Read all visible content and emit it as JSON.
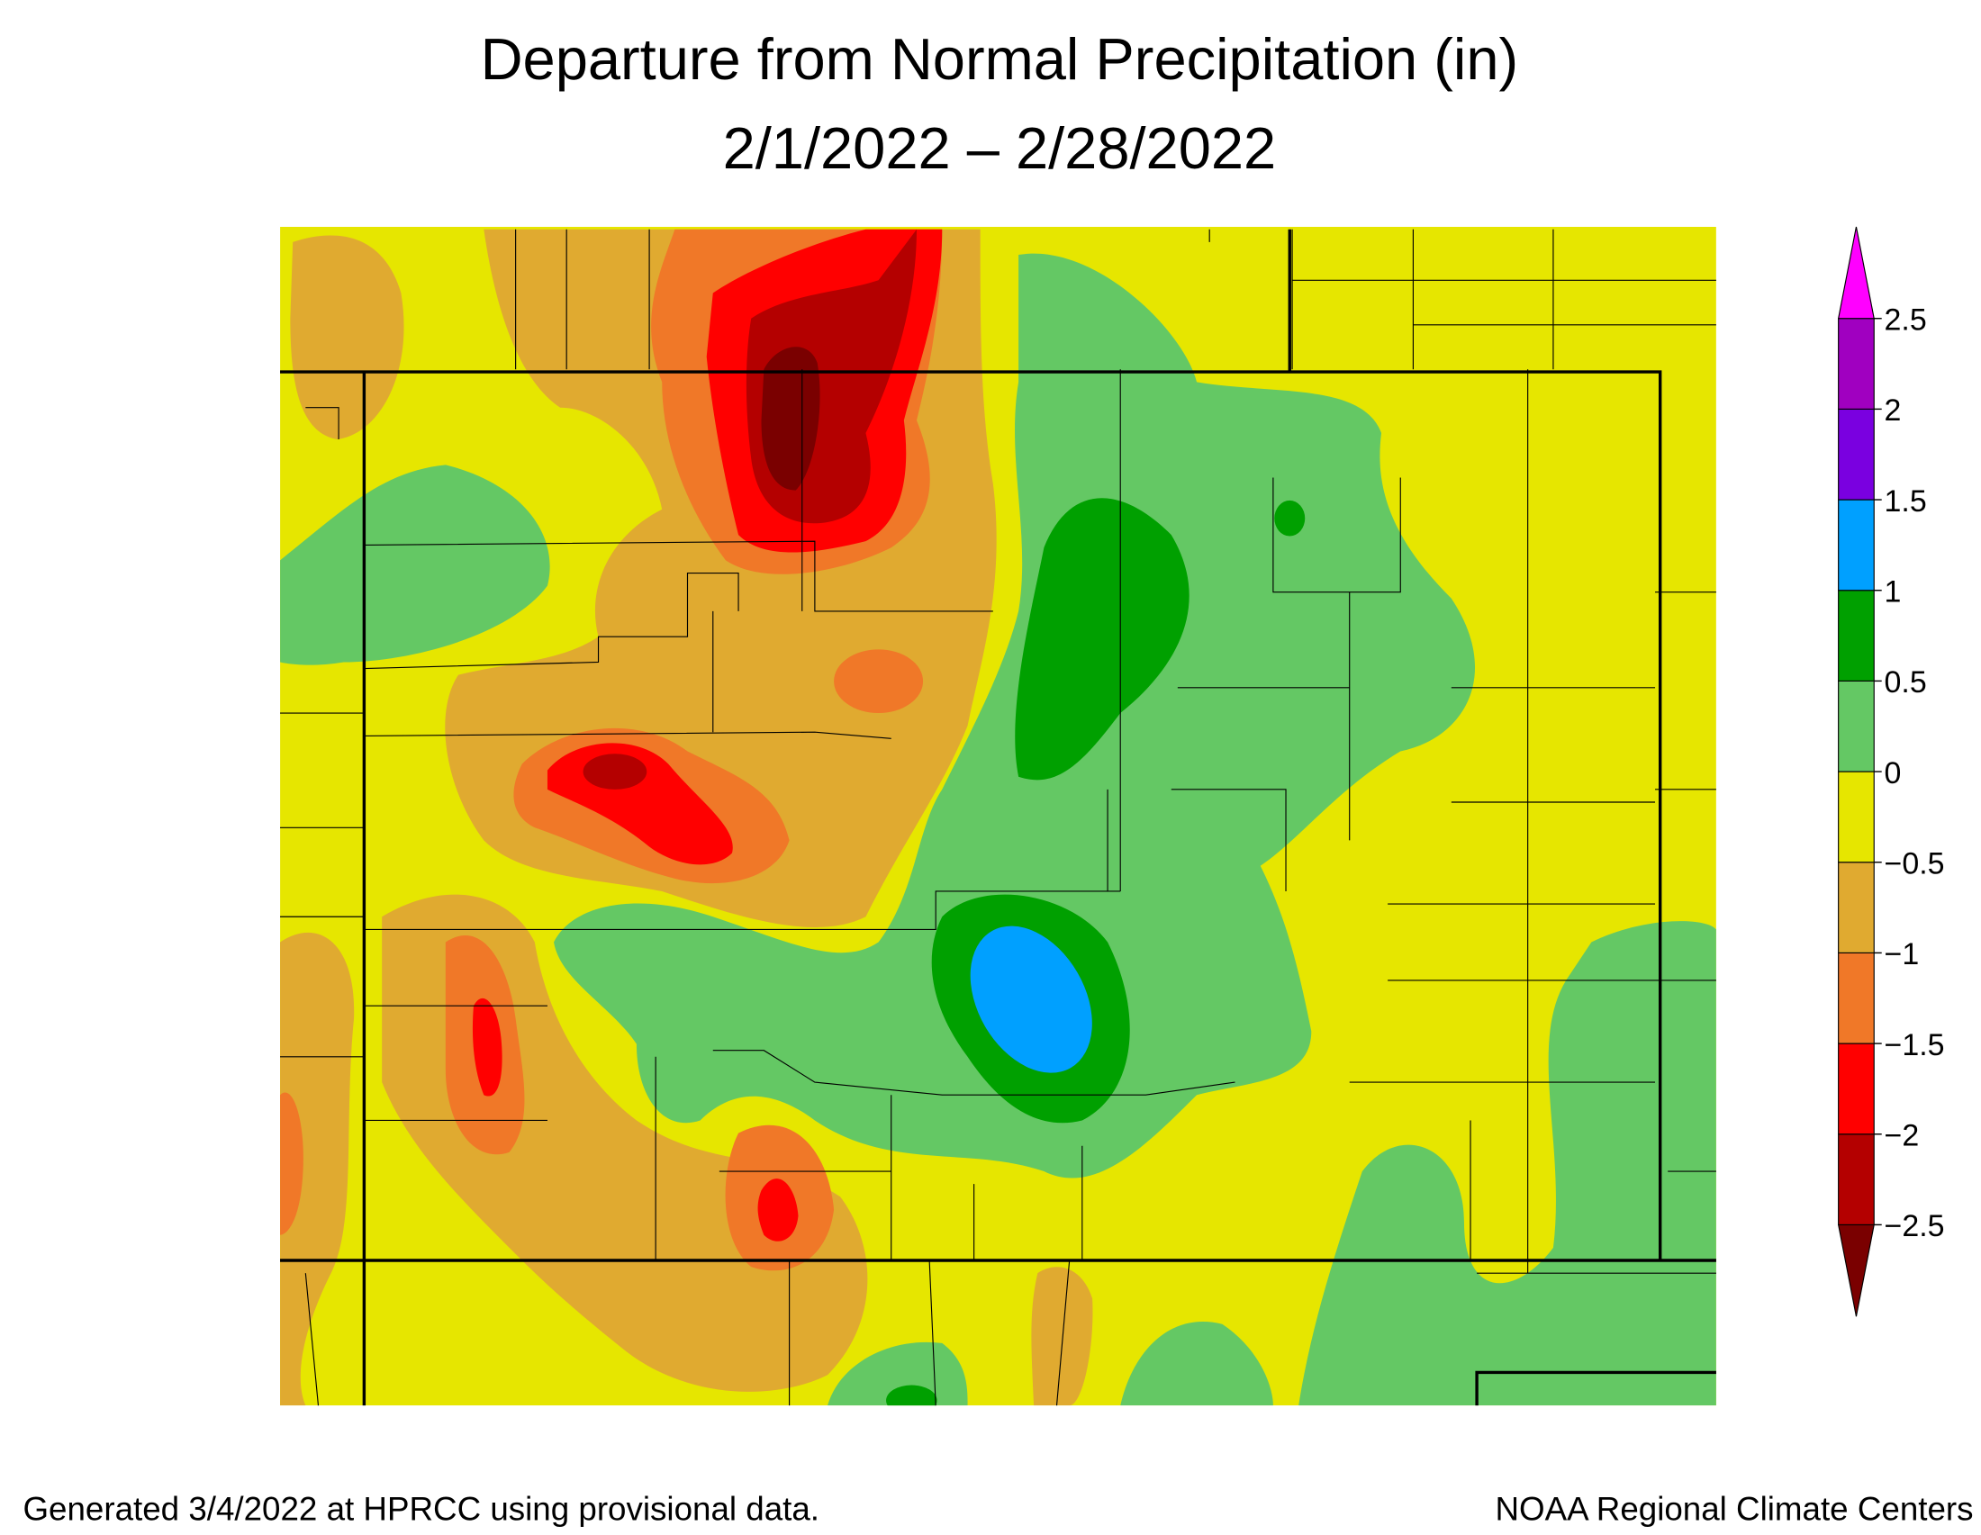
{
  "header": {
    "title": "Departure from Normal Precipitation (in)",
    "subtitle": "2/1/2022 – 2/28/2022"
  },
  "legend": {
    "ticks": [
      {
        "value": -2.5,
        "label": "−2.5"
      },
      {
        "value": -2,
        "label": "−2"
      },
      {
        "value": -1.5,
        "label": "−1.5"
      },
      {
        "value": -1,
        "label": "−1"
      },
      {
        "value": -0.5,
        "label": "−0.5"
      },
      0,
      0.5,
      1,
      1.5,
      2,
      2.5
    ],
    "colors": [
      "#7a0000",
      "#b40000",
      "#ff0000",
      "#f07828",
      "#e0aa30",
      "#e6e600",
      "#64c864",
      "#00a000",
      "#00a0ff",
      "#7a00e0",
      "#a000c0",
      "#ff00ff"
    ]
  },
  "footer": {
    "left": "Generated 3/4/2022 at HPRCC using provisional data.",
    "right": "NOAA Regional Climate Centers"
  }
}
